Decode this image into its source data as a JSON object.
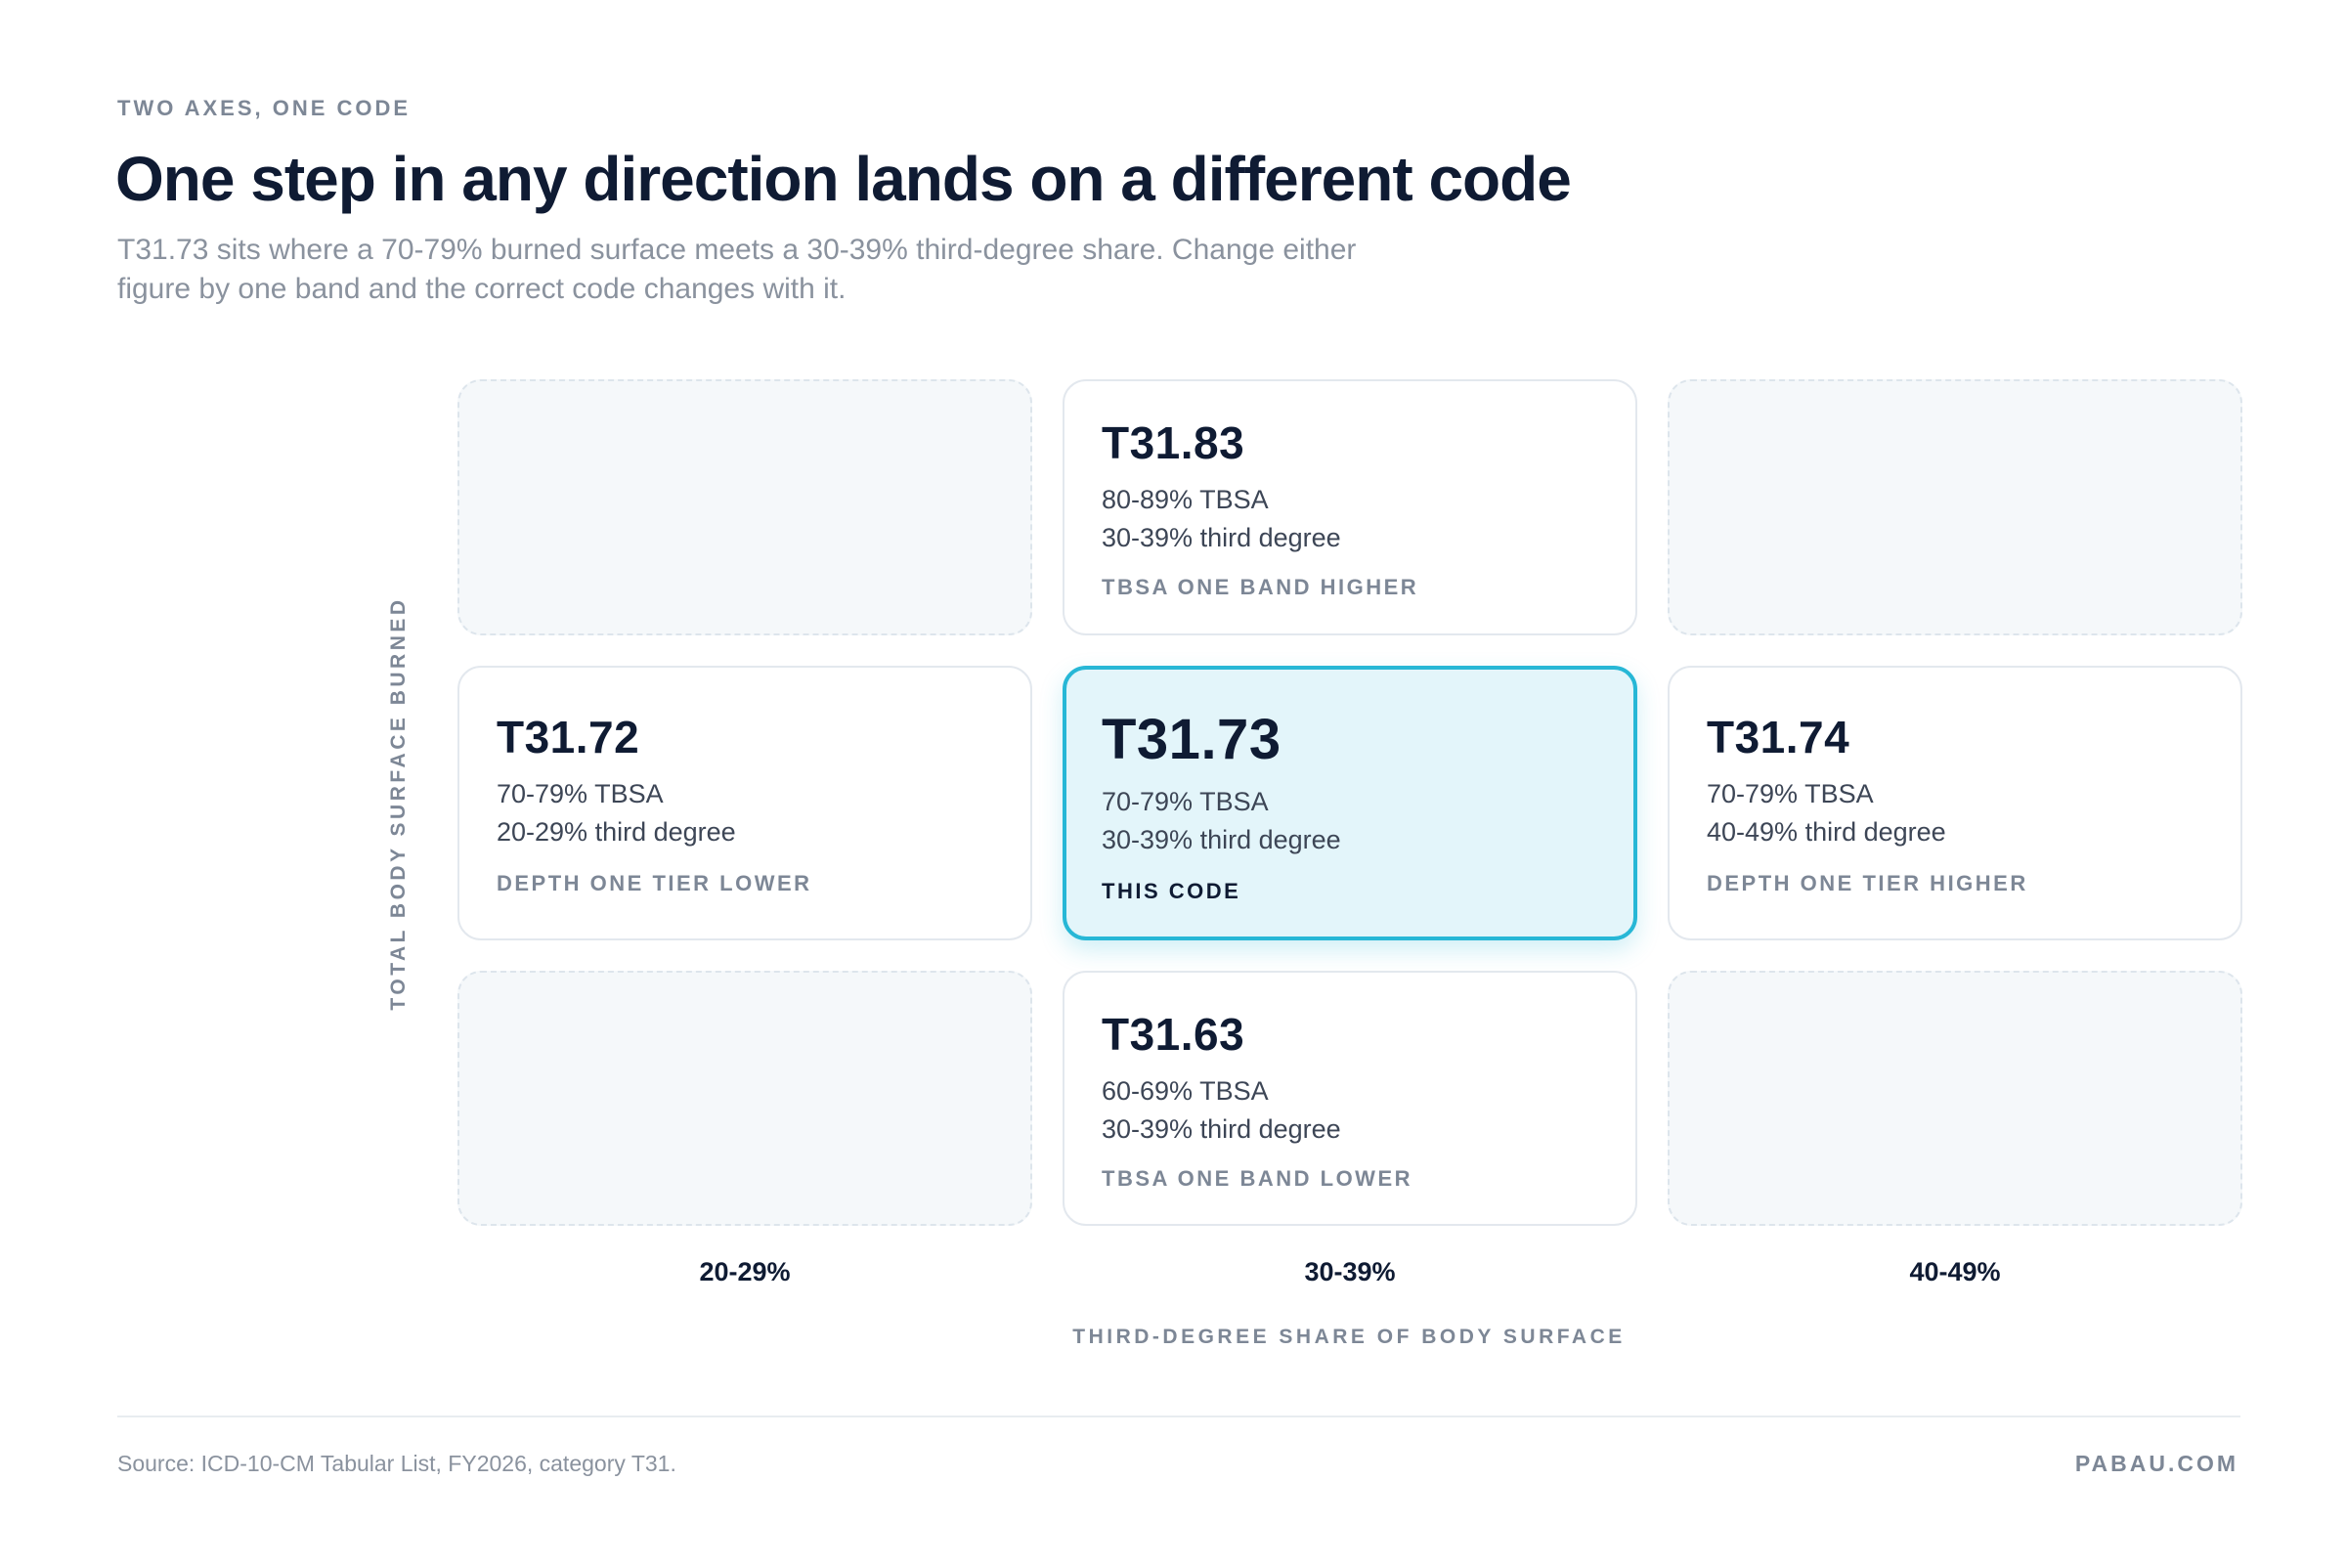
{
  "header": {
    "eyebrow": "TWO AXES, ONE CODE",
    "title": "One step in any direction lands on a different code",
    "subtitle": "T31.73 sits where a 70-79% burned surface meets a 30-39% third-degree share. Change either figure by one band and the correct code changes with it."
  },
  "axes": {
    "y_label": "TOTAL BODY SURFACE BURNED",
    "x_label": "THIRD-DEGREE SHARE OF BODY SURFACE",
    "columns": [
      "20-29%",
      "30-39%",
      "40-49%"
    ]
  },
  "cells": {
    "top": {
      "code": "T31.83",
      "tbsa": "80-89% TBSA",
      "depth": "30-39% third degree",
      "tag": "TBSA ONE BAND HIGHER"
    },
    "left": {
      "code": "T31.72",
      "tbsa": "70-79% TBSA",
      "depth": "20-29% third degree",
      "tag": "DEPTH ONE TIER LOWER"
    },
    "center": {
      "code": "T31.73",
      "tbsa": "70-79% TBSA",
      "depth": "30-39% third degree",
      "tag": "THIS CODE"
    },
    "right": {
      "code": "T31.74",
      "tbsa": "70-79% TBSA",
      "depth": "40-49% third degree",
      "tag": "DEPTH ONE TIER HIGHER"
    },
    "bottom": {
      "code": "T31.63",
      "tbsa": "60-69% TBSA",
      "depth": "30-39% third degree",
      "tag": "TBSA ONE BAND LOWER"
    }
  },
  "footer": {
    "source": "Source: ICD-10-CM Tabular List, FY2026, category T31.",
    "brand": "PABAU.COM"
  },
  "colors": {
    "accent": "#27b7d6",
    "focus_fill": "#e3f5fa",
    "text_dark": "#0f1b33",
    "text_muted": "#7d8796"
  }
}
